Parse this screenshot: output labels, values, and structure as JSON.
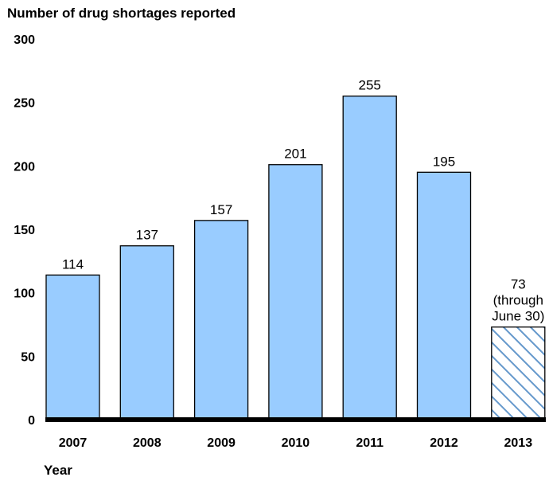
{
  "chart_data": {
    "type": "bar",
    "ylabel": "Number of drug shortages reported",
    "xlabel": "Year",
    "categories": [
      "2007",
      "2008",
      "2009",
      "2010",
      "2011",
      "2012",
      "2013"
    ],
    "values": [
      114,
      137,
      157,
      201,
      255,
      195,
      73
    ],
    "data_labels": [
      "114",
      "137",
      "157",
      "201",
      "255",
      "195",
      "73"
    ],
    "annotation_2013": [
      "(through",
      "June 30)"
    ],
    "ylim": [
      0,
      300
    ],
    "yticks": [
      "0",
      "50",
      "100",
      "150",
      "200",
      "250",
      "300"
    ],
    "grid": false,
    "colors": {
      "bar": "#99CCFF",
      "partial_hatch": "#6699CC",
      "border": "#000000"
    },
    "partial_category": "2013"
  }
}
